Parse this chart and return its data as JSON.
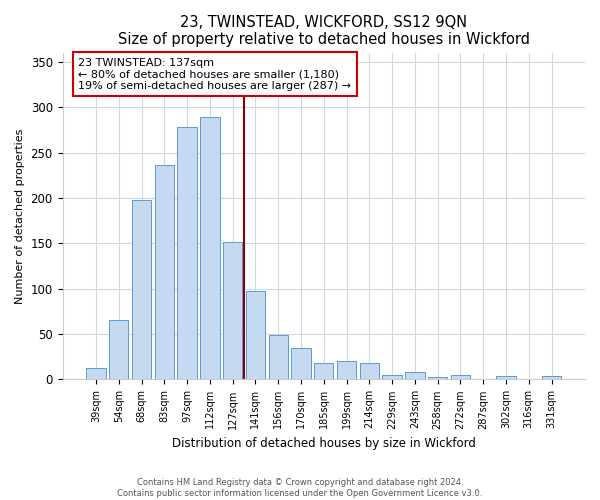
{
  "title": "23, TWINSTEAD, WICKFORD, SS12 9QN",
  "subtitle": "Size of property relative to detached houses in Wickford",
  "xlabel": "Distribution of detached houses by size in Wickford",
  "ylabel": "Number of detached properties",
  "bar_labels": [
    "39sqm",
    "54sqm",
    "68sqm",
    "83sqm",
    "97sqm",
    "112sqm",
    "127sqm",
    "141sqm",
    "156sqm",
    "170sqm",
    "185sqm",
    "199sqm",
    "214sqm",
    "229sqm",
    "243sqm",
    "258sqm",
    "272sqm",
    "287sqm",
    "302sqm",
    "316sqm",
    "331sqm"
  ],
  "bar_values": [
    13,
    65,
    198,
    236,
    278,
    289,
    151,
    97,
    49,
    35,
    18,
    20,
    18,
    5,
    8,
    3,
    5,
    0,
    4,
    0,
    4
  ],
  "bar_color": "#c5d9f0",
  "bar_edge_color": "#5b9bd5",
  "vline_x_idx": 6.5,
  "vline_color": "#8b0000",
  "annotation_title": "23 TWINSTEAD: 137sqm",
  "annotation_line1": "← 80% of detached houses are smaller (1,180)",
  "annotation_line2": "19% of semi-detached houses are larger (287) →",
  "annotation_box_color": "#ffffff",
  "annotation_box_edge": "#cc0000",
  "ylim": [
    0,
    360
  ],
  "yticks": [
    0,
    50,
    100,
    150,
    200,
    250,
    300,
    350
  ],
  "footer1": "Contains HM Land Registry data © Crown copyright and database right 2024.",
  "footer2": "Contains public sector information licensed under the Open Government Licence v3.0.",
  "background_color": "#ffffff",
  "grid_color": "#d0d8e8"
}
